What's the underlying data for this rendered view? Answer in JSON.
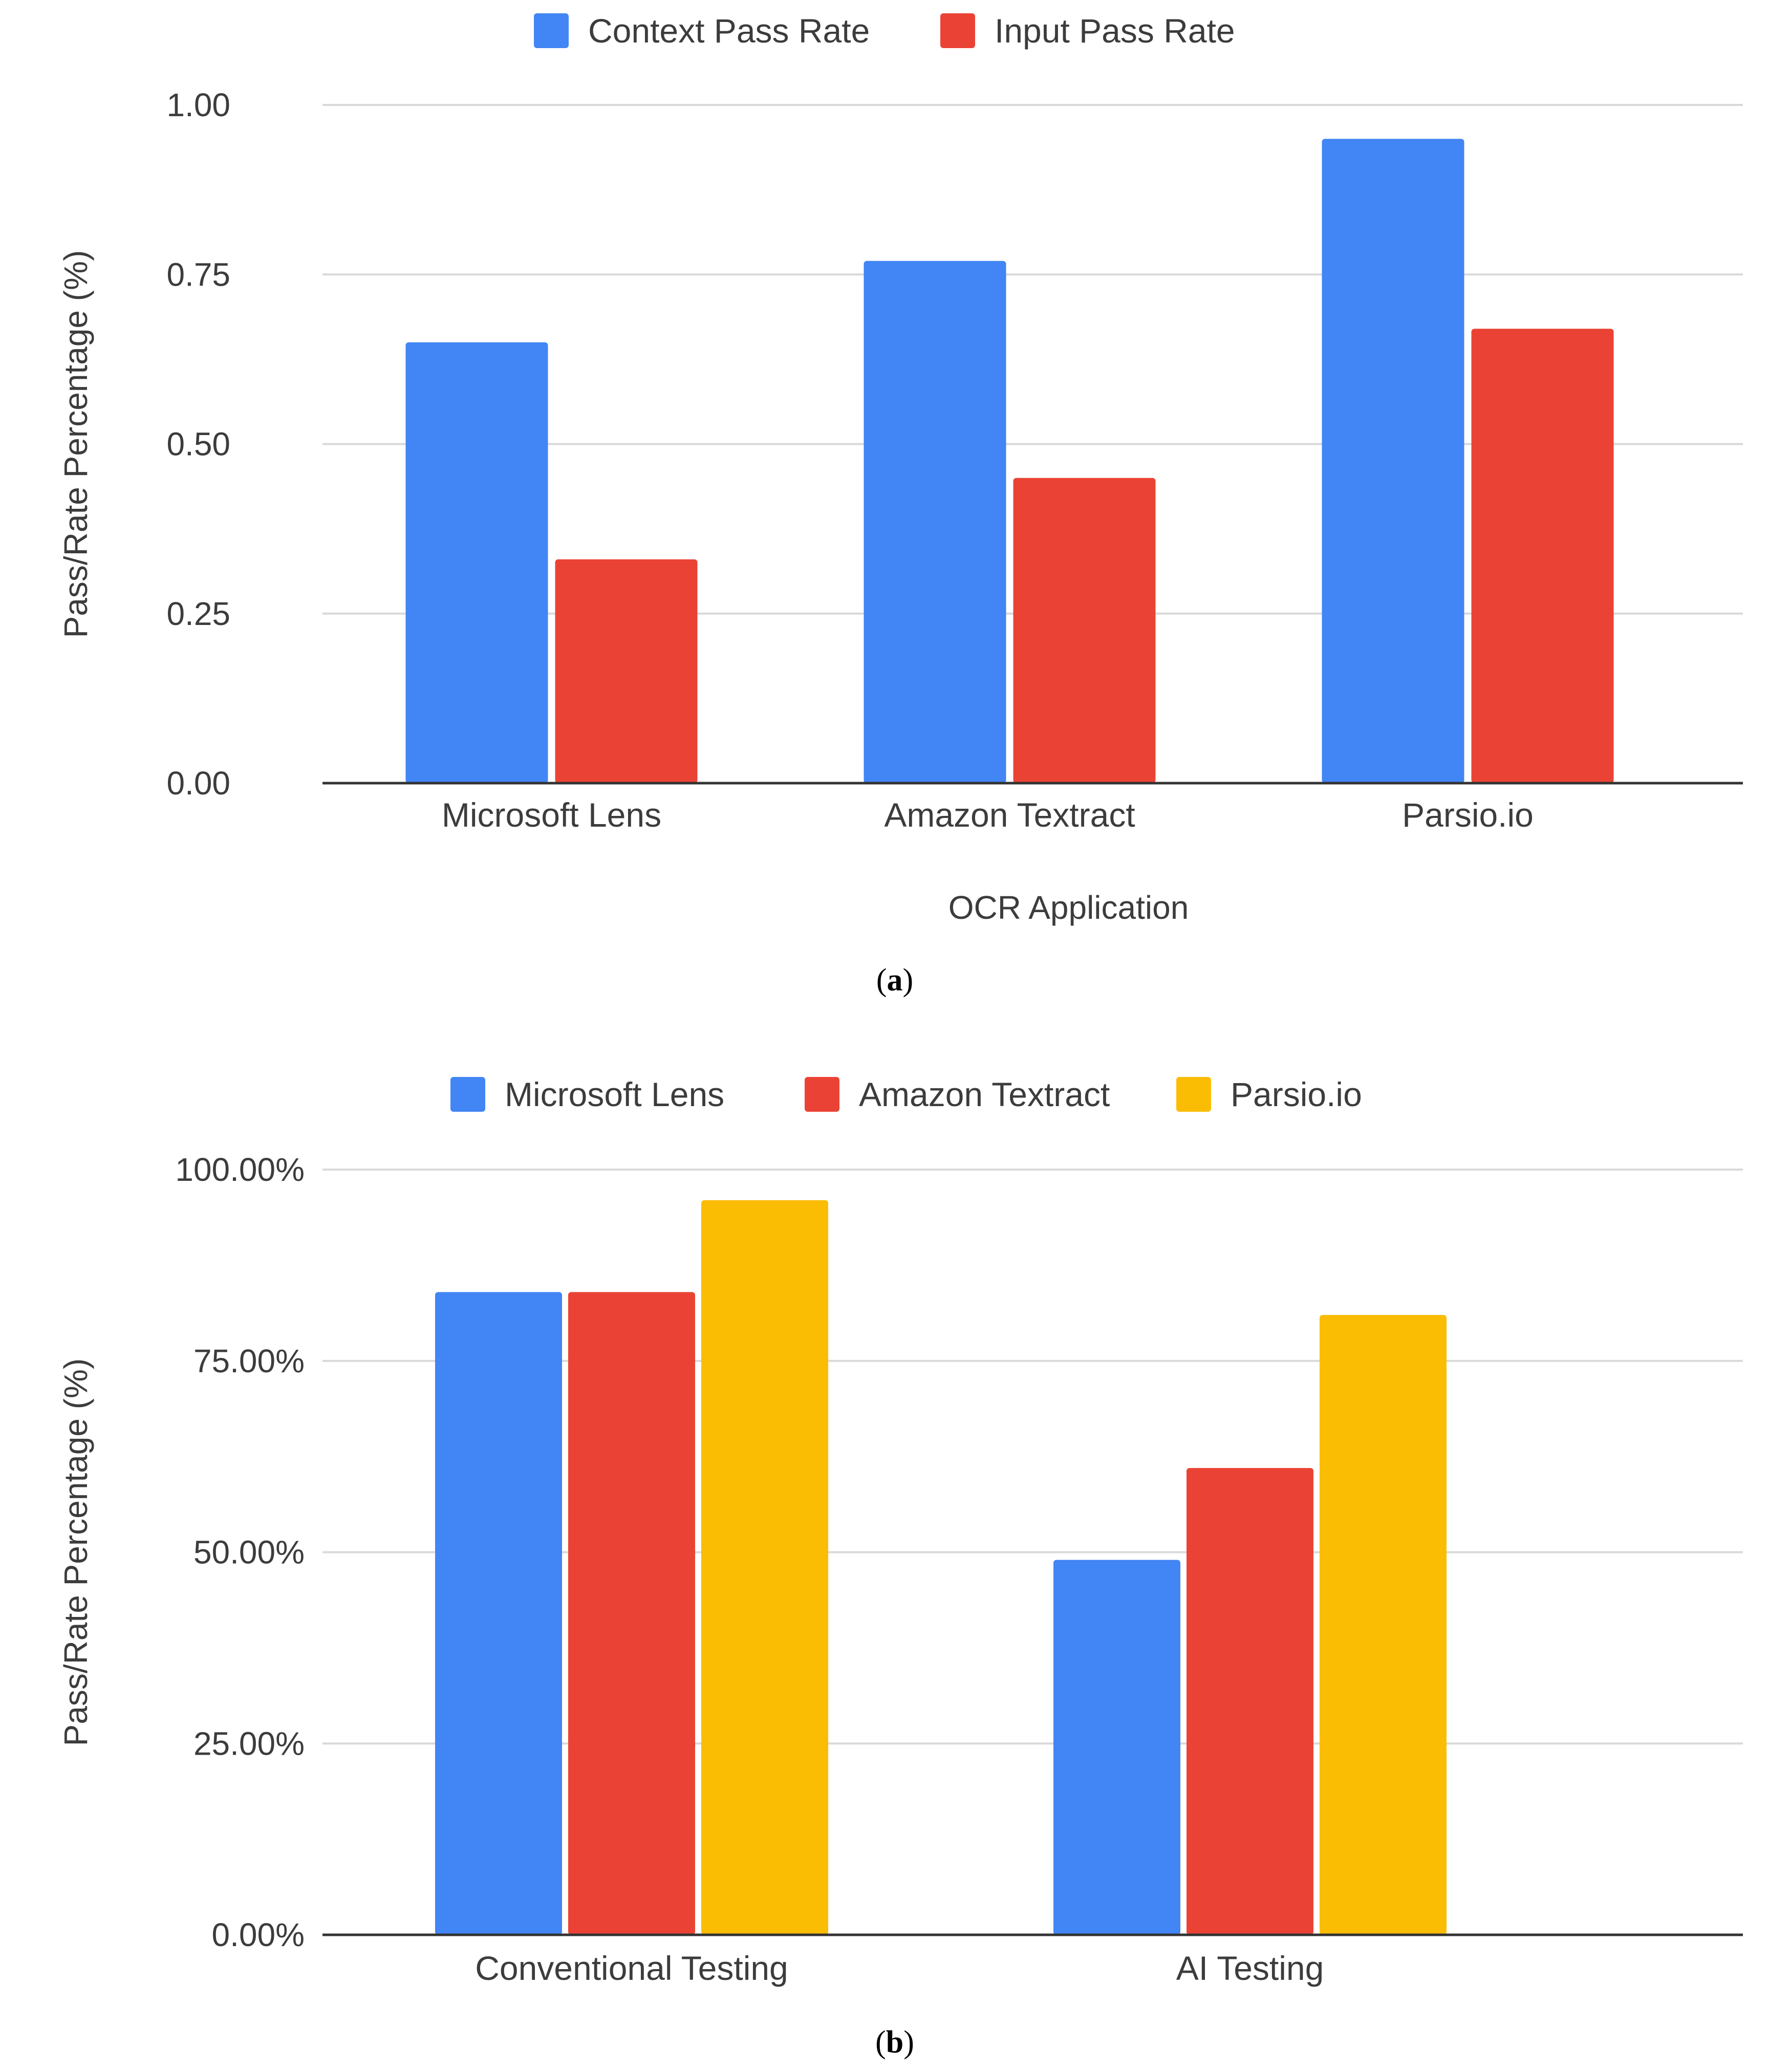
{
  "chart_data": [
    {
      "type": "bar",
      "panel_label": "a",
      "categories": [
        "Microsoft Lens",
        "Amazon Textract",
        "Parsio.io"
      ],
      "series": [
        {
          "name": "Context Pass Rate",
          "color": "#4285f4",
          "values": [
            0.65,
            0.77,
            0.95
          ]
        },
        {
          "name": "Input Pass Rate",
          "color": "#ea4335",
          "values": [
            0.33,
            0.45,
            0.67
          ]
        }
      ],
      "xlabel": "OCR Application",
      "ylabel": "Pass/Rate Percentage (%)",
      "ylim": [
        0,
        1
      ],
      "yticks": [
        {
          "value": 0,
          "label": "0.00"
        },
        {
          "value": 0.25,
          "label": "0.25"
        },
        {
          "value": 0.5,
          "label": "0.50"
        },
        {
          "value": 0.75,
          "label": "0.75"
        },
        {
          "value": 1,
          "label": "1.00"
        }
      ],
      "grid": true,
      "legend_position": "top"
    },
    {
      "type": "bar",
      "panel_label": "b",
      "categories": [
        "Conventional Testing",
        "AI Testing"
      ],
      "series": [
        {
          "name": "Microsoft Lens",
          "color": "#4285f4",
          "values": [
            84,
            49
          ]
        },
        {
          "name": "Amazon Textract",
          "color": "#ea4335",
          "values": [
            84,
            61
          ]
        },
        {
          "name": "Parsio.io",
          "color": "#fbbc04",
          "values": [
            96,
            81
          ]
        }
      ],
      "xlabel": "",
      "ylabel": "Pass/Rate Percentage (%)",
      "ylim": [
        0,
        100
      ],
      "yticks": [
        {
          "value": 0,
          "label": "0.00%"
        },
        {
          "value": 25,
          "label": "25.00%"
        },
        {
          "value": 50,
          "label": "50.00%"
        },
        {
          "value": 75,
          "label": "75.00%"
        },
        {
          "value": 100,
          "label": "100.00%"
        }
      ],
      "grid": true,
      "legend_position": "top"
    }
  ]
}
